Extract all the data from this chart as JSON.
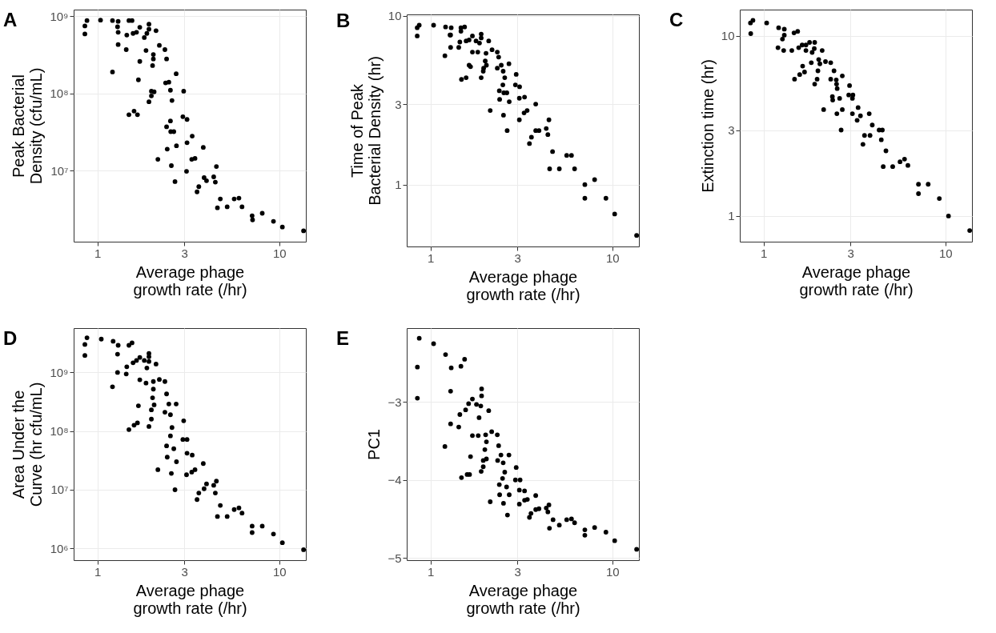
{
  "chart_data": [
    {
      "type": "scatter",
      "title": "A",
      "xlabel": "Average phage\ngrowth rate (/hr)",
      "ylabel": "Peak Bacterial\nDensity (cfu/mL)",
      "log": "xy",
      "grid": true,
      "marker": "circle",
      "xlim": [
        0.74,
        14
      ],
      "xticks": [
        1,
        3,
        10
      ],
      "ylim": [
        1200000,
        1220000000
      ],
      "yticks": [
        {
          "value": 10000000,
          "label": "10⁷"
        },
        {
          "value": 100000000,
          "label": "10⁸"
        },
        {
          "value": 1000000000,
          "label": "10⁹"
        }
      ],
      "x": [
        0.853,
        0.853,
        0.876,
        1.04,
        1.21,
        1.3,
        1.29,
        1.3,
        1.3,
        1.21,
        1.44,
        1.45,
        1.49,
        1.55,
        1.57,
        1.64,
        1.71,
        1.71,
        1.68,
        1.49,
        1.59,
        1.66,
        1.81,
        1.85,
        1.87,
        1.92,
        1.92,
        2.03,
        2.03,
        2.01,
        2.1,
        2.19,
        2.35,
        2.4,
        2.71,
        2.37,
        2.47,
        1.98,
        2.05,
        1.98,
        1.92,
        2.52,
        2.57,
        2.98,
        2.95,
        3.11,
        2.52,
        2.4,
        2.53,
        2.63,
        3.32,
        3.11,
        2.72,
        3.82,
        2.42,
        2.15,
        3.3,
        3.44,
        2.55,
        3.09,
        2.67,
        4.51,
        4.36,
        3.86,
        3.98,
        4.45,
        3.61,
        3.53,
        4.74,
        5.65,
        6.0,
        4.57,
        5.17,
        6.24,
        7.09,
        7.13,
        8.06,
        9.29,
        10.4,
        13.6
      ],
      "series": [
        {
          "color": "#000000",
          "values": [
            590000000.0,
            750000000.0,
            880000000.0,
            890000000.0,
            880000000.0,
            860000000.0,
            730000000.0,
            620000000.0,
            430000000.0,
            190000000.0,
            370000000.0,
            570000000.0,
            880000000.0,
            880000000.0,
            600000000.0,
            620000000.0,
            720000000.0,
            260000000.0,
            150000000.0,
            53000000.0,
            59000000.0,
            53000000.0,
            530000000.0,
            360000000.0,
            600000000.0,
            790000000.0,
            680000000.0,
            320000000.0,
            280000000.0,
            230000000.0,
            650000000.0,
            420000000.0,
            370000000.0,
            280000000.0,
            180000000.0,
            137000000.0,
            140000000.0,
            107000000.0,
            105000000.0,
            93000000.0,
            78000000.0,
            110000000.0,
            81000000.0,
            107000000.0,
            50000000.0,
            46000000.0,
            44000000.0,
            37000000.0,
            32000000.0,
            32000000.0,
            28000000.0,
            23000000.0,
            21000000.0,
            20000000.0,
            19000000.0,
            14000000.0,
            14000000.0,
            14400000.0,
            11600000.0,
            9800000.0,
            7200000.0,
            11300000.0,
            8300000.0,
            8100000.0,
            7400000.0,
            7100000.0,
            6200000.0,
            5300000.0,
            4300000.0,
            4300000.0,
            4400000.0,
            3300000.0,
            3400000.0,
            3400000.0,
            2600000.0,
            2300000.0,
            2800000.0,
            2200000.0,
            1860000.0,
            1660000.0
          ]
        }
      ]
    },
    {
      "type": "scatter",
      "title": "B",
      "xlabel": "Average phage\ngrowth rate (/hr)",
      "ylabel": "Time of Peak\nBacterial Density (hr)",
      "log": "xy",
      "grid": true,
      "marker": "circle",
      "xlim": [
        0.74,
        14
      ],
      "xticks": [
        1,
        3,
        10
      ],
      "ylim": [
        0.43,
        10.2
      ],
      "yticks": [
        1,
        3,
        10
      ],
      "x": [
        0.845,
        0.845,
        0.867,
        1.04,
        1.21,
        1.3,
        1.28,
        1.29,
        1.29,
        1.2,
        1.47,
        1.54,
        1.47,
        1.45,
        1.43,
        1.57,
        1.63,
        1.7,
        1.7,
        1.66,
        1.63,
        1.57,
        1.48,
        1.82,
        1.78,
        1.86,
        1.9,
        1.9,
        1.9,
        2.02,
        2.0,
        2.03,
        1.95,
        1.96,
        2.09,
        2.18,
        2.33,
        2.37,
        2.45,
        2.33,
        2.51,
        2.56,
        2.7,
        2.5,
        2.39,
        2.53,
        2.63,
        2.4,
        2.71,
        2.13,
        2.52,
        2.64,
        2.96,
        2.93,
        3.09,
        3.08,
        3.29,
        3.08,
        3.27,
        3.4,
        3.79,
        3.5,
        3.59,
        3.79,
        3.95,
        4.33,
        4.48,
        4.42,
        4.69,
        4.52,
        5.11,
        5.61,
        5.96,
        6.2,
        7.06,
        7.06,
        7.99,
        9.22,
        10.3,
        13.6
      ],
      "series": [
        {
          "color": "#000000",
          "values": [
            7.6,
            8.5,
            8.8,
            8.8,
            8.6,
            8.5,
            7.7,
            7.7,
            6.5,
            5.8,
            8.5,
            8.6,
            8.1,
            7.0,
            6.5,
            7.1,
            7.2,
            7.6,
            6.1,
            5.0,
            5.1,
            4.3,
            4.2,
            6.1,
            7.1,
            6.9,
            7.8,
            7.4,
            4.3,
            6.0,
            5.4,
            5.1,
            4.7,
            4.9,
            7.1,
            6.3,
            6.1,
            5.7,
            5.1,
            4.9,
            4.7,
            4.3,
            5.2,
            3.9,
            3.6,
            3.5,
            3.5,
            3.2,
            3.1,
            2.75,
            2.58,
            2.09,
            4.5,
            3.9,
            3.8,
            3.25,
            3.3,
            2.42,
            2.66,
            2.75,
            3.0,
            1.75,
            1.91,
            2.09,
            2.09,
            2.15,
            2.42,
            1.98,
            1.57,
            1.24,
            1.24,
            1.49,
            1.49,
            1.24,
            1.0,
            0.83,
            1.07,
            0.83,
            0.67,
            0.5
          ]
        }
      ]
    },
    {
      "type": "scatter",
      "title": "C",
      "xlabel": "Average phage\ngrowth rate (/hr)",
      "ylabel": "Extinction time (hr)",
      "log": "xy",
      "grid": true,
      "marker": "circle",
      "xlim": [
        0.74,
        14
      ],
      "xticks": [
        1,
        3,
        10
      ],
      "ylim": [
        0.72,
        14
      ],
      "yticks": [
        1,
        3,
        10
      ],
      "x": [
        0.847,
        0.874,
        0.85,
        1.04,
        1.21,
        1.3,
        1.3,
        1.27,
        1.2,
        1.29,
        1.47,
        1.54,
        1.43,
        1.56,
        1.63,
        1.71,
        1.71,
        1.79,
        1.91,
        1.9,
        1.85,
        2.1,
        2.01,
        2.04,
        1.83,
        2.19,
        2.34,
        1.64,
        1.99,
        1.68,
        1.58,
        2.44,
        2.71,
        1.48,
        1.97,
        2.34,
        2.51,
        1.91,
        2.52,
        2.54,
        2.97,
        2.94,
        3.1,
        3.08,
        2.39,
        2.4,
        2.62,
        2.14,
        2.71,
        2.53,
        3.31,
        3.08,
        3.41,
        3.27,
        3.81,
        3.96,
        4.32,
        4.5,
        2.67,
        3.59,
        3.85,
        3.52,
        4.44,
        4.71,
        4.55,
        5.13,
        5.63,
        5.96,
        6.22,
        7.11,
        8.04,
        7.11,
        9.26,
        10.4,
        13.6
      ],
      "series": [
        {
          "color": "#000000",
          "values": [
            11.8,
            12.2,
            10.3,
            11.8,
            11.1,
            10.9,
            10.1,
            9.6,
            8.6,
            8.3,
            10.4,
            10.6,
            8.3,
            8.6,
            8.9,
            8.9,
            8.3,
            9.2,
            9.2,
            8.5,
            8.1,
            8.3,
            7.4,
            7.0,
            7.1,
            7.2,
            7.1,
            6.8,
            6.4,
            6.3,
            6.1,
            6.4,
            6.0,
            5.75,
            5.75,
            5.75,
            5.7,
            5.4,
            5.4,
            5.1,
            5.3,
            4.7,
            4.7,
            4.5,
            4.6,
            4.4,
            4.5,
            3.9,
            3.9,
            3.7,
            4.0,
            3.7,
            3.6,
            3.4,
            3.7,
            3.2,
            3.0,
            3.0,
            3.0,
            2.8,
            2.8,
            2.5,
            2.65,
            2.3,
            1.88,
            1.88,
            2.0,
            2.07,
            1.91,
            1.5,
            1.5,
            1.33,
            1.25,
            1.0,
            0.83
          ]
        }
      ]
    },
    {
      "type": "scatter",
      "title": "D",
      "xlabel": "Average phage\ngrowth rate (/hr)",
      "ylabel": "Area Under the\nCurve (hr cfu/mL)",
      "log": "xy",
      "grid": true,
      "marker": "circle",
      "xlim": [
        0.74,
        14
      ],
      "xticks": [
        1,
        3,
        10
      ],
      "ylim": [
        630000,
        5700000000
      ],
      "yticks": [
        {
          "value": 1000000,
          "label": "10⁶"
        },
        {
          "value": 10000000,
          "label": "10⁷"
        },
        {
          "value": 100000000,
          "label": "10⁸"
        },
        {
          "value": 1000000000,
          "label": "10⁹"
        }
      ],
      "x": [
        0.853,
        0.853,
        0.876,
        1.05,
        1.22,
        1.3,
        1.29,
        1.29,
        1.21,
        1.45,
        1.44,
        1.49,
        1.55,
        1.57,
        1.64,
        1.71,
        1.81,
        1.87,
        1.92,
        1.92,
        1.92,
        2.1,
        1.71,
        1.85,
        2.03,
        2.19,
        2.35,
        2.4,
        2.03,
        2.01,
        2.05,
        1.68,
        2.47,
        2.71,
        1.98,
        2.35,
        2.52,
        1.98,
        1.92,
        1.49,
        1.59,
        1.66,
        2.98,
        2.57,
        2.52,
        2.95,
        3.11,
        2.4,
        2.63,
        2.42,
        3.11,
        3.32,
        2.72,
        3.82,
        2.15,
        3.44,
        3.3,
        3.09,
        2.55,
        2.67,
        4.51,
        3.98,
        4.36,
        3.86,
        3.61,
        4.45,
        3.53,
        4.74,
        5.65,
        6.0,
        6.24,
        4.57,
        5.17,
        7.09,
        7.09,
        8.06,
        9.29,
        10.4,
        13.6
      ],
      "series": [
        {
          "color": "#000000",
          "values": [
            1950000000.0,
            3000000000.0,
            3900000000.0,
            3700000000.0,
            3400000000.0,
            2900000000.0,
            2050000000.0,
            1000000000.0,
            570000000.0,
            1250000000.0,
            940000000.0,
            2900000000.0,
            3200000000.0,
            1460000000.0,
            1600000000.0,
            1800000000.0,
            1600000000.0,
            1190000000.0,
            1540000000.0,
            2100000000.0,
            1850000000.0,
            1390000000.0,
            750000000.0,
            660000000.0,
            700000000.0,
            760000000.0,
            700000000.0,
            430000000.0,
            520000000.0,
            370000000.0,
            280000000.0,
            270000000.0,
            290000000.0,
            290000000.0,
            230000000.0,
            210000000.0,
            190000000.0,
            160000000.0,
            120000000.0,
            106000000.0,
            126000000.0,
            138000000.0,
            150000000.0,
            115000000.0,
            83000000.0,
            72000000.0,
            72000000.0,
            56000000.0,
            50000000.0,
            36000000.0,
            42000000.0,
            39000000.0,
            30000000.0,
            28000000.0,
            22000000.0,
            22000000.0,
            20000000.0,
            18000000.0,
            19000000.0,
            10000000.0,
            14000000.0,
            12600000.0,
            11900000.0,
            10400000.0,
            8800000.0,
            8800000.0,
            6800000.0,
            5400000.0,
            4600000.0,
            4900000.0,
            4000000.0,
            3500000.0,
            3500000.0,
            2400000.0,
            1860000.0,
            2400000.0,
            1760000.0,
            1250000.0,
            950000.0
          ]
        }
      ]
    },
    {
      "type": "scatter",
      "title": "E",
      "xlabel": "Average phage\ngrowth rate (/hr)",
      "ylabel": "PC1",
      "log": "x",
      "grid": true,
      "marker": "circle",
      "xlim": [
        0.74,
        14
      ],
      "xticks": [
        1,
        3,
        10
      ],
      "ylim": [
        -5.03,
        -2.05
      ],
      "yticks": [
        -5,
        -4,
        -3
      ],
      "x": [
        0.867,
        0.847,
        0.847,
        1.04,
        1.21,
        1.3,
        1.29,
        1.2,
        1.29,
        1.47,
        1.54,
        1.43,
        1.45,
        1.56,
        1.62,
        1.7,
        1.79,
        1.89,
        1.91,
        1.91,
        1.85,
        2.09,
        1.7,
        1.83,
        2.01,
        2.17,
        2.33,
        2.03,
        2.37,
        1.99,
        1.66,
        2.03,
        1.95,
        1.95,
        1.9,
        1.48,
        1.59,
        1.64,
        2.44,
        2.7,
        2.34,
        2.51,
        2.56,
        2.49,
        2.39,
        2.62,
        2.4,
        2.71,
        2.13,
        2.52,
        2.65,
        2.96,
        2.93,
        3.11,
        3.08,
        3.29,
        3.08,
        3.29,
        3.41,
        3.79,
        3.57,
        3.5,
        3.79,
        3.95,
        4.48,
        4.33,
        4.42,
        4.72,
        4.51,
        5.11,
        5.61,
        5.96,
        6.2,
        7.06,
        7.06,
        7.99,
        9.22,
        10.3,
        13.6
      ],
      "series": [
        {
          "color": "#000000",
          "values": [
            -2.18,
            -2.55,
            -2.95,
            -2.25,
            -2.39,
            -2.56,
            -2.86,
            -3.57,
            -3.28,
            -2.54,
            -2.45,
            -3.32,
            -3.16,
            -3.1,
            -3.02,
            -2.96,
            -3.03,
            -3.05,
            -2.83,
            -2.92,
            -3.2,
            -3.11,
            -3.43,
            -3.43,
            -3.42,
            -3.38,
            -3.42,
            -3.51,
            -3.56,
            -3.61,
            -3.7,
            -3.73,
            -3.75,
            -3.83,
            -3.89,
            -3.97,
            -3.93,
            -3.93,
            -3.68,
            -3.68,
            -3.75,
            -3.78,
            -3.9,
            -3.98,
            -4.06,
            -4.09,
            -4.19,
            -4.19,
            -4.28,
            -4.3,
            -4.45,
            -3.84,
            -4.0,
            -4.0,
            -4.13,
            -4.14,
            -4.31,
            -4.26,
            -4.25,
            -4.2,
            -4.43,
            -4.48,
            -4.38,
            -4.37,
            -4.32,
            -4.36,
            -4.41,
            -4.51,
            -4.62,
            -4.58,
            -4.51,
            -4.5,
            -4.55,
            -4.64,
            -4.71,
            -4.61,
            -4.67,
            -4.78,
            -4.89
          ]
        }
      ]
    }
  ]
}
